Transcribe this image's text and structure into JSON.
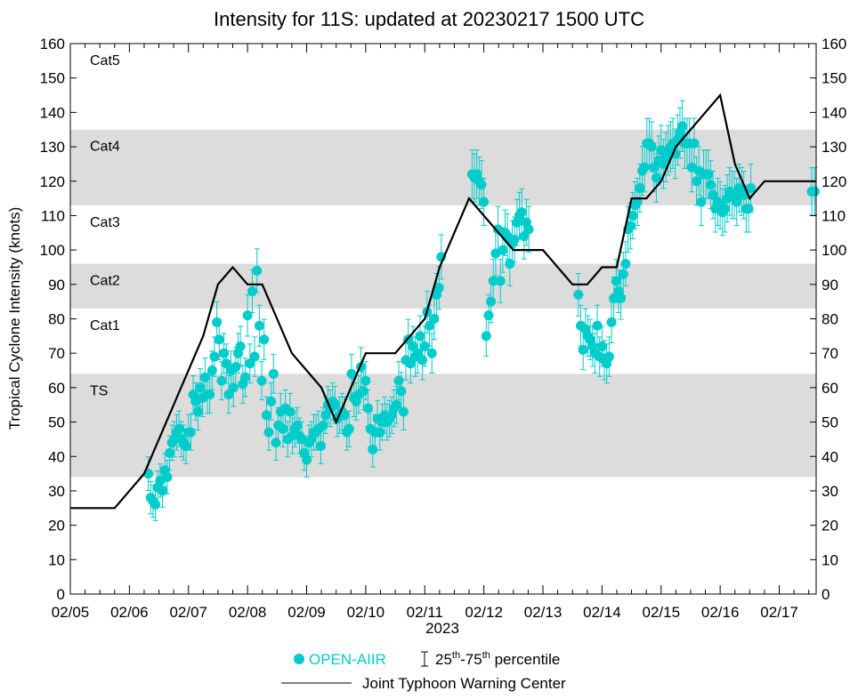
{
  "chart_data": {
    "type": "scatter",
    "title": "Intensity for 11S: updated at 20230217 1500 UTC",
    "xlabel": "2023",
    "ylabel": "Tropical Cyclone Intensity (knots)",
    "xlim": [
      0,
      12.625
    ],
    "ylim": [
      0,
      160
    ],
    "x_ticks": [
      {
        "x": 0,
        "label": "02/05"
      },
      {
        "x": 1,
        "label": "02/06"
      },
      {
        "x": 2,
        "label": "02/07"
      },
      {
        "x": 3,
        "label": "02/08"
      },
      {
        "x": 4,
        "label": "02/09"
      },
      {
        "x": 5,
        "label": "02/10"
      },
      {
        "x": 6,
        "label": "02/11"
      },
      {
        "x": 7,
        "label": "02/12"
      },
      {
        "x": 8,
        "label": "02/13"
      },
      {
        "x": 9,
        "label": "02/14"
      },
      {
        "x": 10,
        "label": "02/15"
      },
      {
        "x": 11,
        "label": "02/16"
      },
      {
        "x": 12,
        "label": "02/17"
      }
    ],
    "y_ticks": [
      "0",
      "10",
      "20",
      "30",
      "40",
      "50",
      "60",
      "70",
      "80",
      "90",
      "100",
      "110",
      "120",
      "130",
      "140",
      "150",
      "160"
    ],
    "categories_bands": [
      {
        "label": "TS",
        "min": 34,
        "max": 64,
        "shaded": true
      },
      {
        "label": "Cat1",
        "min": 64,
        "max": 83,
        "shaded": false
      },
      {
        "label": "Cat2",
        "min": 83,
        "max": 96,
        "shaded": true
      },
      {
        "label": "Cat3",
        "min": 96,
        "max": 113,
        "shaded": false
      },
      {
        "label": "Cat4",
        "min": 113,
        "max": 135,
        "shaded": true
      },
      {
        "label": "Cat5",
        "min": 135,
        "max": 160,
        "shaded": false
      }
    ],
    "band_color": "#dcdcdc",
    "jtwc": {
      "name": "Joint Typhoon Warning Center",
      "color": "#000000",
      "points": [
        [
          0.0,
          25
        ],
        [
          0.75,
          25
        ],
        [
          1.25,
          35
        ],
        [
          2.25,
          75
        ],
        [
          2.5,
          90
        ],
        [
          2.75,
          95
        ],
        [
          3.0,
          90
        ],
        [
          3.25,
          90
        ],
        [
          3.75,
          70
        ],
        [
          4.25,
          60
        ],
        [
          4.5,
          50
        ],
        [
          5.0,
          70
        ],
        [
          5.5,
          70
        ],
        [
          6.0,
          80
        ],
        [
          6.25,
          95
        ],
        [
          6.75,
          115
        ],
        [
          7.5,
          100
        ],
        [
          8.0,
          100
        ],
        [
          8.5,
          90
        ],
        [
          8.75,
          90
        ],
        [
          9.0,
          95
        ],
        [
          9.25,
          95
        ],
        [
          9.5,
          115
        ],
        [
          9.75,
          115
        ],
        [
          10.0,
          120
        ],
        [
          10.25,
          130
        ],
        [
          11.0,
          145
        ],
        [
          11.25,
          125
        ],
        [
          11.5,
          115
        ],
        [
          11.75,
          120
        ],
        [
          12.625,
          120
        ]
      ]
    },
    "open_aiir": {
      "name": "OPEN-AIIR",
      "color": "#00cccc",
      "points": [
        [
          1.32,
          35
        ],
        [
          1.36,
          28
        ],
        [
          1.4,
          27
        ],
        [
          1.44,
          26
        ],
        [
          1.48,
          31
        ],
        [
          1.52,
          33
        ],
        [
          1.56,
          30
        ],
        [
          1.6,
          36
        ],
        [
          1.64,
          34
        ],
        [
          1.68,
          41
        ],
        [
          1.72,
          44
        ],
        [
          1.76,
          45
        ],
        [
          1.8,
          47
        ],
        [
          1.84,
          48
        ],
        [
          1.88,
          45
        ],
        [
          1.92,
          44
        ],
        [
          1.96,
          43
        ],
        [
          2.0,
          47
        ],
        [
          2.04,
          47
        ],
        [
          2.08,
          58
        ],
        [
          2.12,
          56
        ],
        [
          2.16,
          53
        ],
        [
          2.2,
          60
        ],
        [
          2.24,
          57
        ],
        [
          2.28,
          63
        ],
        [
          2.32,
          58
        ],
        [
          2.36,
          58
        ],
        [
          2.4,
          65
        ],
        [
          2.44,
          69
        ],
        [
          2.48,
          79
        ],
        [
          2.52,
          74
        ],
        [
          2.56,
          62
        ],
        [
          2.6,
          70
        ],
        [
          2.64,
          67
        ],
        [
          2.68,
          58
        ],
        [
          2.72,
          65
        ],
        [
          2.76,
          60
        ],
        [
          2.8,
          66
        ],
        [
          2.84,
          70
        ],
        [
          2.88,
          72
        ],
        [
          2.92,
          61
        ],
        [
          2.96,
          63
        ],
        [
          3.0,
          81
        ],
        [
          3.04,
          67
        ],
        [
          3.08,
          88
        ],
        [
          3.12,
          69
        ],
        [
          3.16,
          94
        ],
        [
          3.2,
          78
        ],
        [
          3.24,
          62
        ],
        [
          3.28,
          74
        ],
        [
          3.32,
          52
        ],
        [
          3.36,
          47
        ],
        [
          3.4,
          56
        ],
        [
          3.44,
          64
        ],
        [
          3.48,
          44
        ],
        [
          3.52,
          49
        ],
        [
          3.56,
          53
        ],
        [
          3.6,
          48
        ],
        [
          3.64,
          54
        ],
        [
          3.68,
          45
        ],
        [
          3.72,
          53
        ],
        [
          3.76,
          46
        ],
        [
          3.8,
          48
        ],
        [
          3.84,
          49
        ],
        [
          3.88,
          46
        ],
        [
          3.92,
          45
        ],
        [
          3.96,
          41
        ],
        [
          4.0,
          39
        ],
        [
          4.04,
          44
        ],
        [
          4.08,
          45
        ],
        [
          4.12,
          47
        ],
        [
          4.16,
          47
        ],
        [
          4.2,
          48
        ],
        [
          4.24,
          43
        ],
        [
          4.28,
          49
        ],
        [
          4.32,
          52
        ],
        [
          4.36,
          55
        ],
        [
          4.4,
          54
        ],
        [
          4.44,
          56
        ],
        [
          4.48,
          55
        ],
        [
          4.52,
          51
        ],
        [
          4.56,
          52
        ],
        [
          4.6,
          53
        ],
        [
          4.64,
          52
        ],
        [
          4.68,
          47
        ],
        [
          4.72,
          48
        ],
        [
          4.76,
          64
        ],
        [
          4.8,
          57
        ],
        [
          4.84,
          56
        ],
        [
          4.88,
          58
        ],
        [
          4.92,
          66
        ],
        [
          4.96,
          59
        ],
        [
          5.0,
          62
        ],
        [
          5.04,
          54
        ],
        [
          5.08,
          48
        ],
        [
          5.12,
          42
        ],
        [
          5.16,
          47
        ],
        [
          5.2,
          51
        ],
        [
          5.24,
          47
        ],
        [
          5.28,
          50
        ],
        [
          5.32,
          52
        ],
        [
          5.36,
          50
        ],
        [
          5.4,
          51
        ],
        [
          5.44,
          52
        ],
        [
          5.48,
          54
        ],
        [
          5.52,
          55
        ],
        [
          5.56,
          62
        ],
        [
          5.6,
          59
        ],
        [
          5.64,
          53
        ],
        [
          5.68,
          68
        ],
        [
          5.72,
          74
        ],
        [
          5.76,
          67
        ],
        [
          5.8,
          72
        ],
        [
          5.84,
          69
        ],
        [
          5.88,
          70
        ],
        [
          5.92,
          75
        ],
        [
          5.96,
          68
        ],
        [
          6.0,
          72
        ],
        [
          6.04,
          82
        ],
        [
          6.08,
          78
        ],
        [
          6.12,
          70
        ],
        [
          6.16,
          80
        ],
        [
          6.2,
          87
        ],
        [
          6.24,
          89
        ],
        [
          6.28,
          98
        ],
        [
          6.8,
          122
        ],
        [
          6.84,
          121
        ],
        [
          6.88,
          122
        ],
        [
          6.92,
          120
        ],
        [
          6.96,
          119
        ],
        [
          7.0,
          114
        ],
        [
          7.04,
          75
        ],
        [
          7.08,
          81
        ],
        [
          7.12,
          85
        ],
        [
          7.16,
          91
        ],
        [
          7.2,
          99
        ],
        [
          7.24,
          106
        ],
        [
          7.28,
          91
        ],
        [
          7.32,
          100
        ],
        [
          7.36,
          105
        ],
        [
          7.4,
          104
        ],
        [
          7.44,
          96
        ],
        [
          7.48,
          102
        ],
        [
          7.52,
          103
        ],
        [
          7.56,
          108
        ],
        [
          7.6,
          110
        ],
        [
          7.64,
          111
        ],
        [
          7.68,
          104
        ],
        [
          7.72,
          108
        ],
        [
          7.76,
          106
        ],
        [
          8.6,
          87
        ],
        [
          8.64,
          78
        ],
        [
          8.68,
          71
        ],
        [
          8.72,
          77
        ],
        [
          8.76,
          75
        ],
        [
          8.8,
          74
        ],
        [
          8.84,
          72
        ],
        [
          8.88,
          70
        ],
        [
          8.92,
          78
        ],
        [
          8.96,
          69
        ],
        [
          9.0,
          72
        ],
        [
          9.04,
          68
        ],
        [
          9.08,
          67
        ],
        [
          9.12,
          69
        ],
        [
          9.16,
          79
        ],
        [
          9.2,
          86
        ],
        [
          9.24,
          91
        ],
        [
          9.28,
          88
        ],
        [
          9.32,
          86
        ],
        [
          9.36,
          93
        ],
        [
          9.4,
          96
        ],
        [
          9.44,
          106
        ],
        [
          9.48,
          107
        ],
        [
          9.52,
          110
        ],
        [
          9.56,
          113
        ],
        [
          9.6,
          114
        ],
        [
          9.64,
          118
        ],
        [
          9.68,
          123
        ],
        [
          9.72,
          124
        ],
        [
          9.76,
          131
        ],
        [
          9.8,
          131
        ],
        [
          9.84,
          130
        ],
        [
          9.88,
          124
        ],
        [
          9.92,
          121
        ],
        [
          9.96,
          126
        ],
        [
          10.0,
          129
        ],
        [
          10.04,
          125
        ],
        [
          10.08,
          127
        ],
        [
          10.12,
          129
        ],
        [
          10.16,
          130
        ],
        [
          10.2,
          131
        ],
        [
          10.24,
          128
        ],
        [
          10.28,
          132
        ],
        [
          10.32,
          134
        ],
        [
          10.36,
          136
        ],
        [
          10.4,
          131
        ],
        [
          10.44,
          131
        ],
        [
          10.48,
          131
        ],
        [
          10.52,
          124
        ],
        [
          10.56,
          131
        ],
        [
          10.6,
          120
        ],
        [
          10.64,
          123
        ],
        [
          10.68,
          114
        ],
        [
          10.72,
          122
        ],
        [
          10.76,
          122
        ],
        [
          10.8,
          122
        ],
        [
          10.84,
          119
        ],
        [
          10.88,
          116
        ],
        [
          10.92,
          112
        ],
        [
          10.96,
          114
        ],
        [
          11.0,
          113
        ],
        [
          11.04,
          111
        ],
        [
          11.08,
          112
        ],
        [
          11.12,
          115
        ],
        [
          11.16,
          117
        ],
        [
          11.2,
          116
        ],
        [
          11.24,
          116
        ],
        [
          11.28,
          114
        ],
        [
          11.32,
          118
        ],
        [
          11.36,
          117
        ],
        [
          11.4,
          116
        ],
        [
          11.44,
          112
        ],
        [
          11.48,
          112
        ],
        [
          11.52,
          118
        ],
        [
          12.55,
          117
        ],
        [
          12.6,
          117
        ]
      ],
      "error_bar_label": "25th-75th percentile"
    },
    "legend": {
      "placement": "bottom",
      "open_aiir": "OPEN-AIIR",
      "percentile_prefix": "25",
      "percentile_sup1": "th",
      "percentile_mid": "-75",
      "percentile_sup2": "th",
      "percentile_suffix": " percentile",
      "jtwc": "Joint Typhoon Warning Center"
    },
    "grid": false
  }
}
